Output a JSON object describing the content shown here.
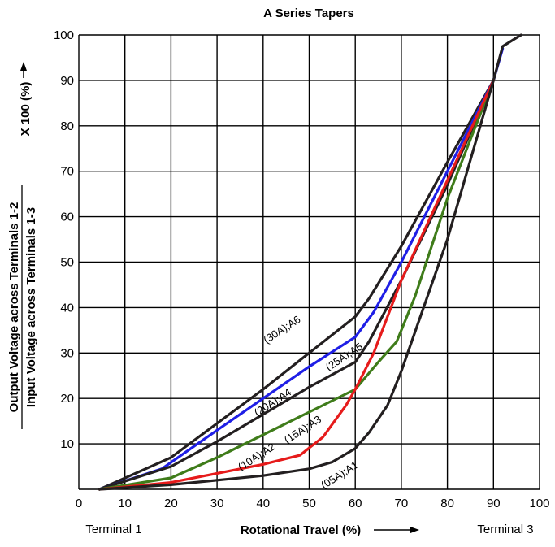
{
  "chart_data": {
    "type": "line",
    "title": "A Series Tapers",
    "xlabel": "Rotational Travel (%)",
    "ylabel_numerator": "Output Voltage across Terminals 1-2",
    "ylabel_denominator": "Input Voltage across Terminals 1-3",
    "ylabel_multiplier": "X 100 (%)",
    "terminal_left": "Terminal 1",
    "terminal_right": "Terminal 3",
    "xlim": [
      0,
      100
    ],
    "ylim": [
      0,
      100
    ],
    "grid": true,
    "x_ticks": [
      "0",
      "10",
      "20",
      "30",
      "40",
      "50",
      "60",
      "70",
      "80",
      "90",
      "100"
    ],
    "y_ticks": [
      "10",
      "20",
      "30",
      "40",
      "50",
      "60",
      "70",
      "80",
      "90",
      "100"
    ],
    "series": [
      {
        "name": "(30A);A6",
        "color": "#231f20",
        "label_x": 44.5,
        "label_y": 34.5,
        "x": [
          4.5,
          20,
          30,
          40,
          50,
          60,
          63,
          70,
          80,
          90
        ],
        "y": [
          0,
          7,
          14.5,
          22,
          30,
          38,
          42,
          53.5,
          72,
          90
        ]
      },
      {
        "name": "(25A);A5",
        "color": "#1f1fe6",
        "label_x": 58,
        "label_y": 28.5,
        "x": [
          4.5,
          18,
          30,
          40,
          50,
          60,
          64,
          70,
          80,
          90,
          92
        ],
        "y": [
          0,
          4.5,
          13,
          20,
          27,
          33.5,
          39,
          50,
          70,
          90,
          97
        ]
      },
      {
        "name": "(20A);A4",
        "color": "#231f20",
        "label_x": 42.5,
        "label_y": 18.5,
        "x": [
          4.5,
          20,
          30,
          40,
          50,
          60,
          63,
          70,
          80,
          90,
          92,
          96
        ],
        "y": [
          0,
          5,
          10.5,
          16.5,
          22.5,
          28,
          32.5,
          46,
          67,
          90,
          97.5,
          100
        ]
      },
      {
        "name": "(15A);A3",
        "color": "#3f7c1a",
        "label_x": 49,
        "label_y": 12.5,
        "x": [
          4.5,
          20,
          30,
          40,
          50,
          60,
          65,
          69,
          73,
          80,
          90
        ],
        "y": [
          0,
          2.5,
          7,
          12,
          17,
          22,
          28,
          32.5,
          42.5,
          64,
          90
        ]
      },
      {
        "name": "(10A);A2",
        "color": "#e61b1b",
        "label_x": 39,
        "label_y": 6.5,
        "x": [
          4.5,
          20,
          30,
          40,
          48,
          53,
          58,
          60,
          64,
          70,
          80,
          90
        ],
        "y": [
          0,
          1.5,
          3.5,
          5.5,
          7.5,
          11.5,
          18.5,
          22,
          30,
          46,
          68,
          90
        ]
      },
      {
        "name": "(05A);A1",
        "color": "#231f20",
        "label_x": 57,
        "label_y": 2.5,
        "x": [
          4.5,
          20,
          30,
          40,
          50,
          55,
          60,
          63,
          67,
          70,
          80,
          90
        ],
        "y": [
          0,
          1,
          2,
          3,
          4.5,
          6,
          9,
          12.5,
          18.5,
          26,
          55,
          90
        ]
      }
    ]
  }
}
